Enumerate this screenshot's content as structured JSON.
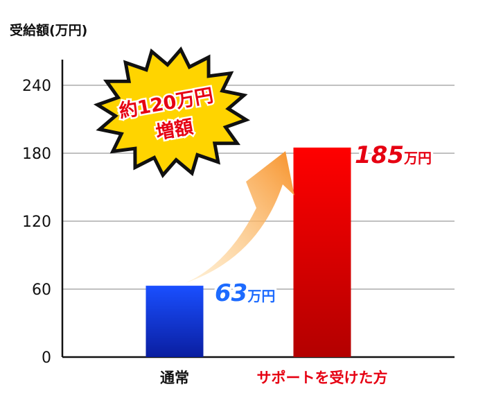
{
  "chart_data": {
    "type": "bar",
    "ylabel": "受給額(万円)",
    "ylim": [
      0,
      260
    ],
    "yticks": [
      0,
      60,
      120,
      180,
      240
    ],
    "grid": true,
    "categories": [
      "通常",
      "サポートを受けた方"
    ],
    "values": [
      63,
      185
    ],
    "value_labels": [
      "63",
      "185"
    ],
    "value_unit": "万円",
    "colors": {
      "bar1_top": "#1a4fff",
      "bar1_bottom": "#0a1ea0",
      "bar2_top": "#ff0000",
      "bar2_bottom": "#b30000",
      "category2_text": "#e60012",
      "label1_fill": "#1d6bff",
      "label2_fill": "#e60012",
      "burst_fill": "#ffd400",
      "arrow_light": "#ffe3b0",
      "arrow_dark": "#f7922a"
    },
    "annotation": {
      "line1": "約120万円",
      "line2": "増額"
    }
  }
}
